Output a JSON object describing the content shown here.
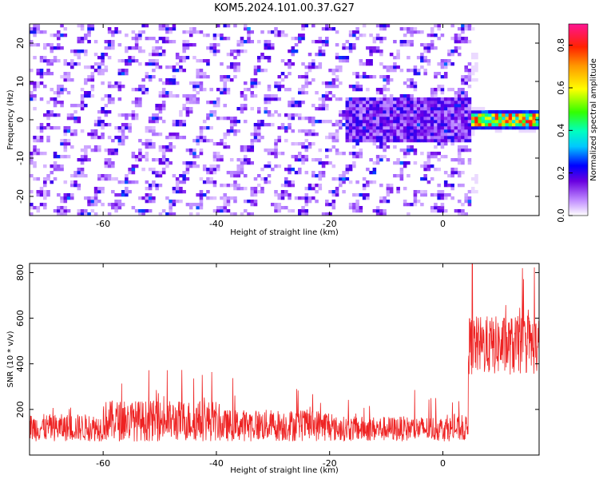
{
  "title": "KOM5.2024.101.00.37.G27",
  "chart_data": [
    {
      "type": "heatmap",
      "xlabel": "Height of straight line (km)",
      "ylabel": "Frequency (Hz)",
      "xlim": [
        -73,
        17
      ],
      "ylim": [
        -25,
        25
      ],
      "xticks": [
        -60,
        -40,
        -20,
        0
      ],
      "yticks": [
        -20,
        -10,
        0,
        10,
        20
      ],
      "colorbar": {
        "label": "Normalized spectral amplitude",
        "range": [
          0,
          0.9
        ],
        "ticks": [
          0.0,
          0.2,
          0.4,
          0.6,
          0.8
        ]
      },
      "features": {
        "background_noise_level": 0.12,
        "mid_band": {
          "x_range": [
            -15,
            5
          ],
          "y_center": 0,
          "y_halfwidth": 6,
          "level": 0.25
        },
        "strong_line": {
          "x_range": [
            5,
            17
          ],
          "y_center": 0,
          "level": 0.85
        }
      }
    },
    {
      "type": "line",
      "xlabel": "Height of straight line (km)",
      "ylabel": "SNR (10 * v/v)",
      "xlim": [
        -73,
        17
      ],
      "ylim": [
        0,
        840
      ],
      "xticks": [
        -60,
        -40,
        -20,
        0
      ],
      "yticks": [
        200,
        400,
        600,
        800
      ],
      "color": "#ee2222",
      "segments": [
        {
          "x_range": [
            -73,
            -60
          ],
          "mean": 120,
          "spread": 60
        },
        {
          "x_range": [
            -60,
            -40
          ],
          "mean": 150,
          "spread": 90
        },
        {
          "x_range": [
            -40,
            -20
          ],
          "mean": 130,
          "spread": 70
        },
        {
          "x_range": [
            -20,
            4.5
          ],
          "mean": 115,
          "spread": 55
        },
        {
          "x_range": [
            4.5,
            17
          ],
          "mean": 480,
          "spread": 130
        }
      ],
      "peak": {
        "x": 5.2,
        "y": 840
      }
    }
  ]
}
